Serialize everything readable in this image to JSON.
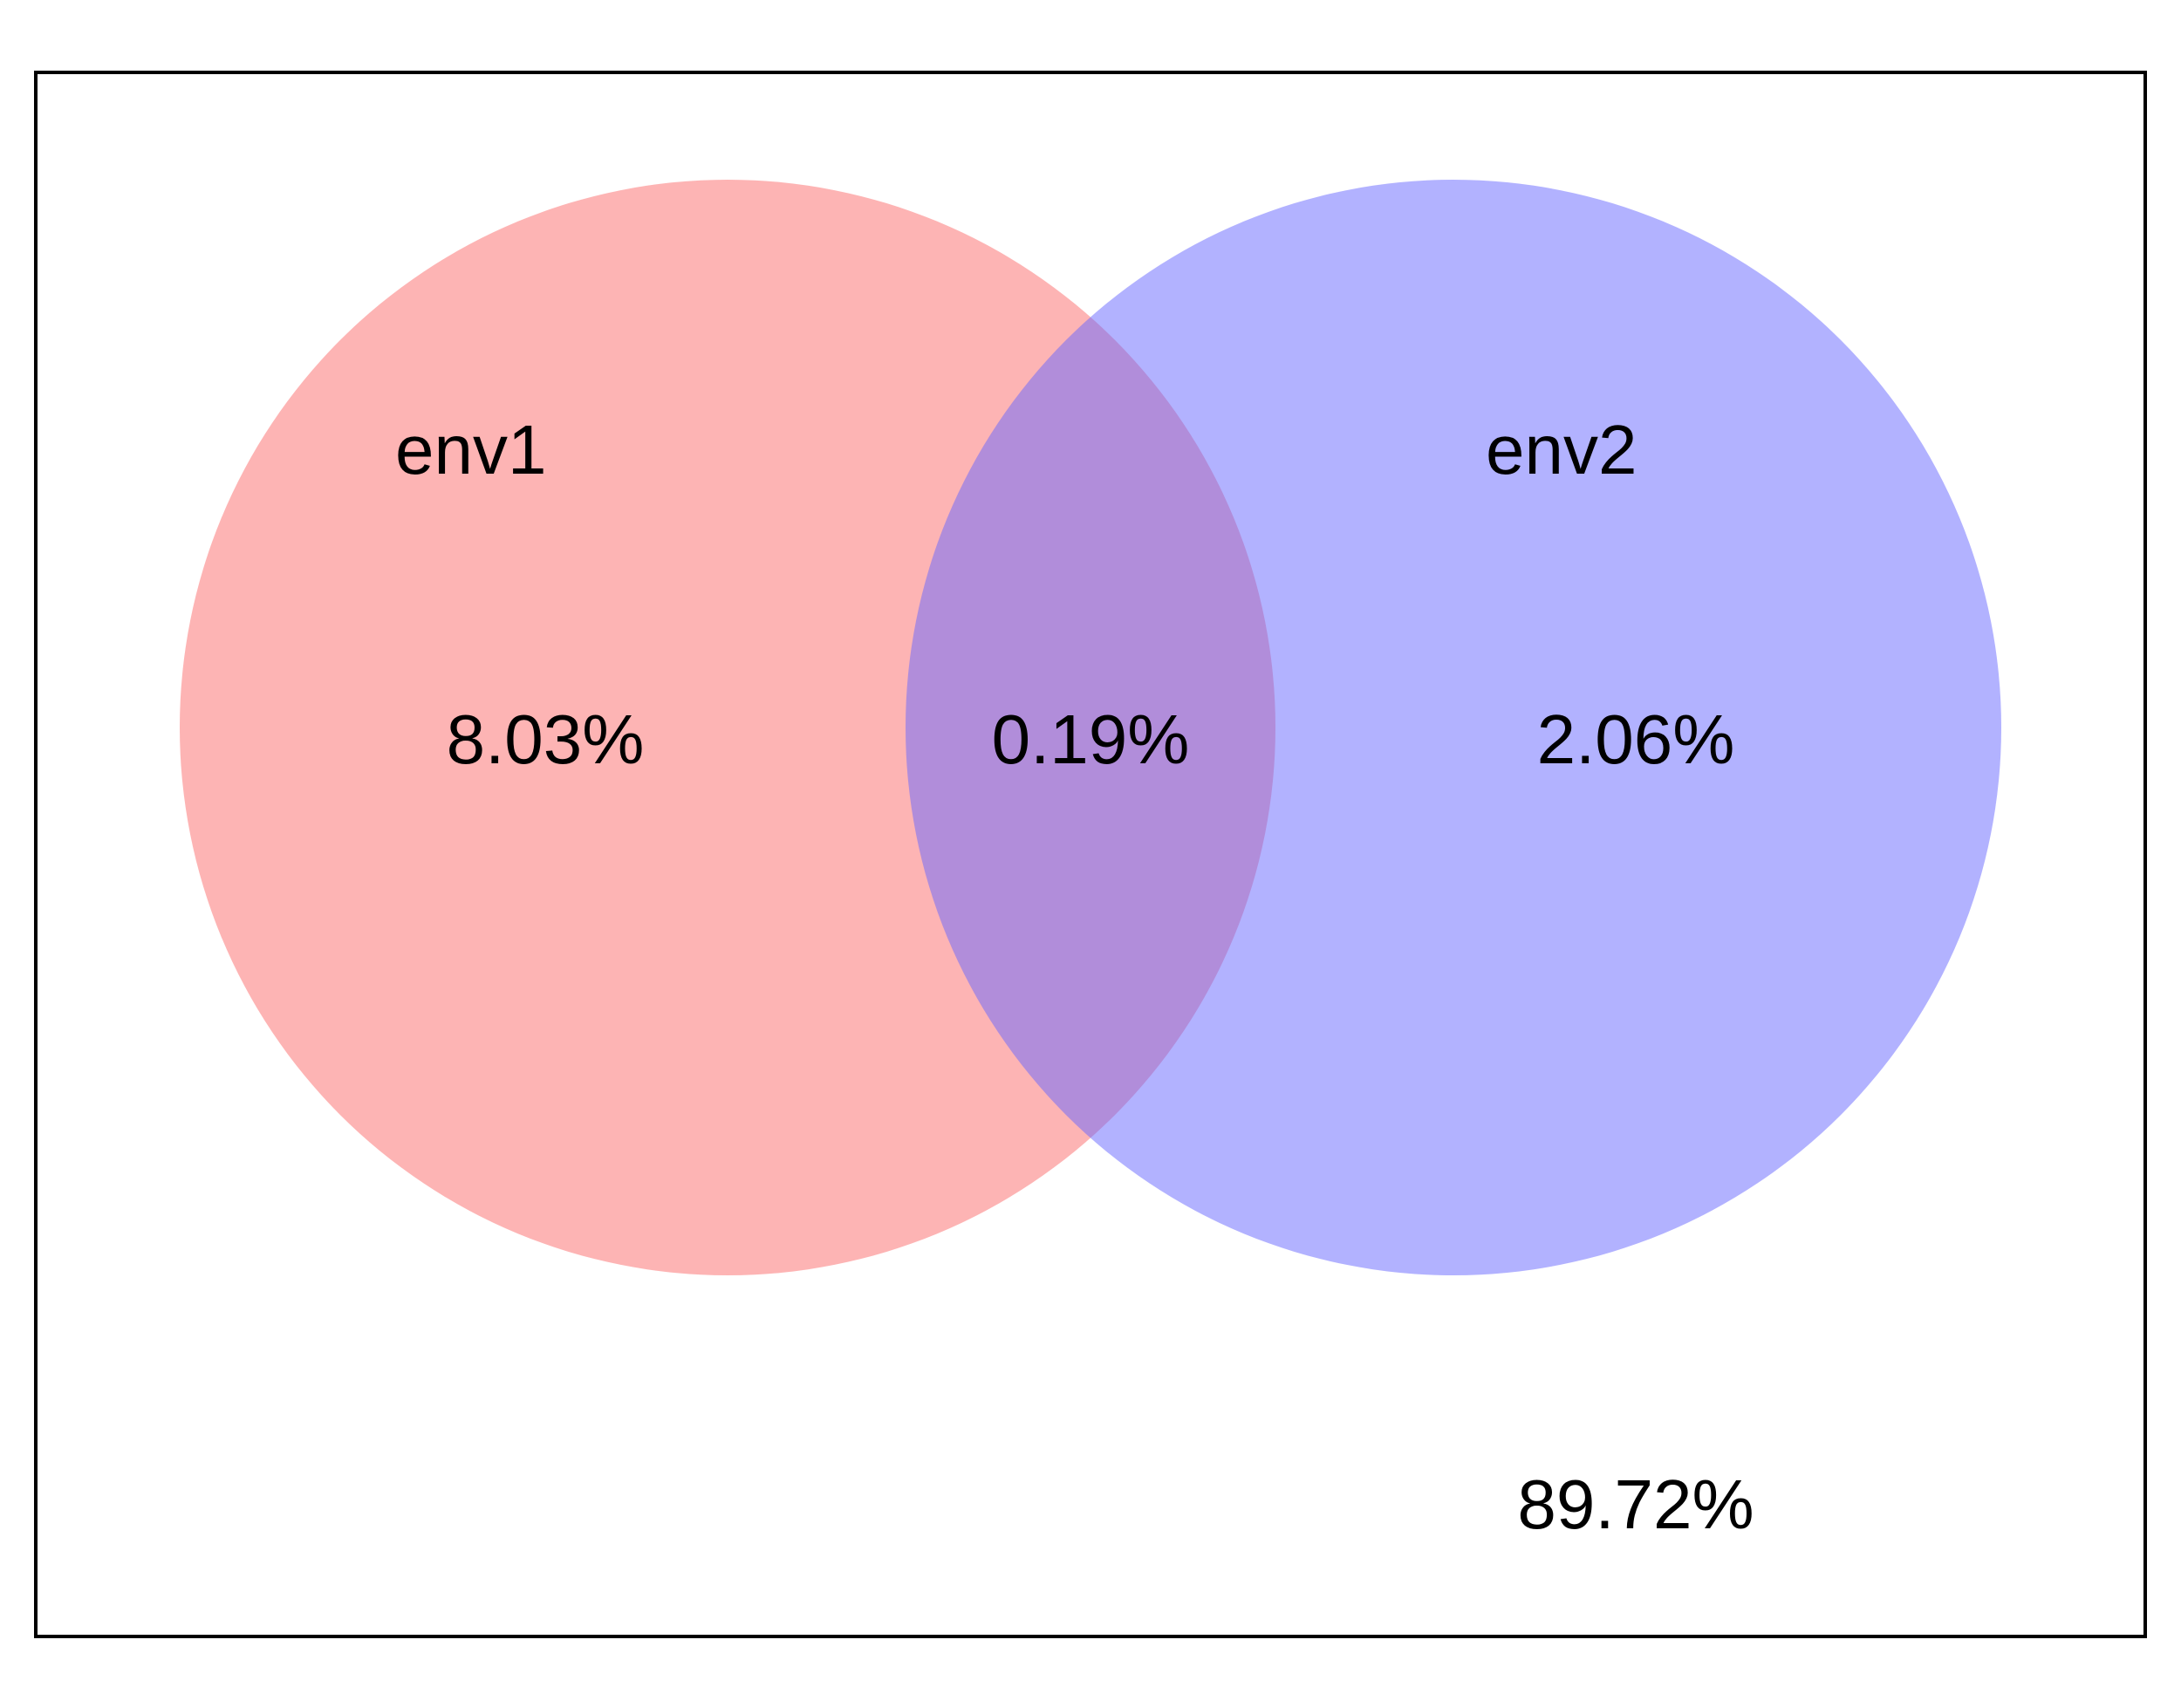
{
  "diagram": {
    "type": "venn",
    "sets": [
      {
        "label": "env1",
        "fill": "#fb6a6a",
        "opacity": 0.5
      },
      {
        "label": "env2",
        "fill": "#6666ff",
        "opacity": 0.5
      }
    ],
    "regions": {
      "env1_only": "8.03%",
      "intersection": "0.19%",
      "env2_only": "2.06%",
      "outside": "89.72%"
    },
    "colors": {
      "frame": "#000000",
      "background": "#ffffff",
      "overlap": "#b27fc8"
    }
  }
}
